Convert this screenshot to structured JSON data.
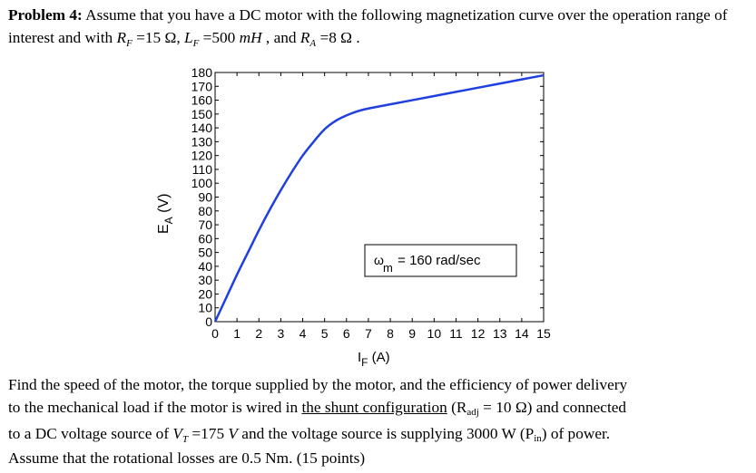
{
  "problem": {
    "label": "Problem 4:",
    "intro": " Assume that you have a DC motor with the following magnetization curve over the operation range of interest and with ",
    "rf_sym": "R",
    "rf_sub": "F",
    "rf_val": " =15  Ω, ",
    "lf_sym": "L",
    "lf_sub": "F",
    "lf_val": " =500  ",
    "lf_unit": "mH",
    "and_text": " , and ",
    "ra_sym": "R",
    "ra_sub": "A",
    "ra_val": " =8  Ω ."
  },
  "chart_data": {
    "type": "line",
    "x": [
      0,
      0.5,
      1,
      1.5,
      2,
      2.5,
      3,
      3.5,
      4,
      4.5,
      5,
      5.5,
      6,
      6.5,
      7,
      8,
      9,
      10,
      11,
      12,
      13,
      14,
      15
    ],
    "series": [
      {
        "values": [
          0,
          17,
          34,
          50,
          66,
          81,
          95,
          108,
          120,
          130,
          139,
          145,
          149,
          152,
          154,
          157,
          160,
          163,
          166,
          169,
          172,
          175,
          178
        ]
      }
    ],
    "xlim": [
      0,
      15
    ],
    "ylim": [
      0,
      180
    ],
    "xticks": [
      "0",
      "1",
      "2",
      "3",
      "4",
      "5",
      "6",
      "7",
      "8",
      "9",
      "10",
      "11",
      "12",
      "13",
      "14",
      "15"
    ],
    "yticks": [
      "0",
      "10",
      "20",
      "30",
      "40",
      "50",
      "60",
      "70",
      "80",
      "90",
      "100",
      "110",
      "120",
      "130",
      "140",
      "150",
      "160",
      "170",
      "180"
    ],
    "xlabel_main": "I",
    "xlabel_sub": "F",
    "xlabel_unit": " (A)",
    "ylabel_main": "E",
    "ylabel_sub": "A",
    "ylabel_unit": " (V)",
    "annotation_sym": "ω",
    "annotation_sub": "m",
    "annotation_text": " = 160 rad/sec",
    "line_color": "#1f3fe0",
    "grid": false
  },
  "task": {
    "line1": "Find the speed of the motor, the torque supplied by the motor, and the efficiency of power delivery",
    "line2a": "to the mechanical load if the motor is wired in ",
    "shunt": "the shunt configuration",
    "radj_open": " (R",
    "radj_sub": "adj",
    "radj_val": " = 10 Ω) and connected",
    "line3a": "to a DC voltage source of ",
    "vt_sym": "V",
    "vt_sub": "T",
    "vt_val": " =175  ",
    "vt_unit": "V",
    "line3b": " and the voltage source is supplying 3000 W (P",
    "pin_sub": "in",
    "line3c": ") of power.",
    "line4": "Assume that the rotational losses are 0.5 Nm. (15 points)"
  }
}
